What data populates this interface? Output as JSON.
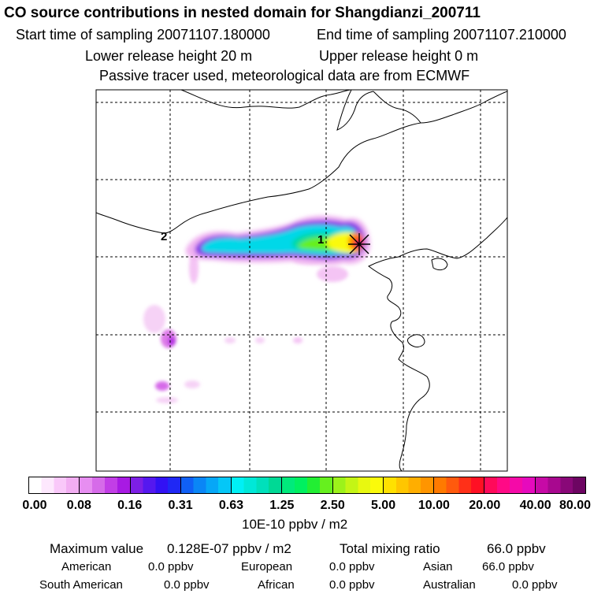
{
  "header": {
    "title": "CO  source contributions in nested domain for Shangdianzi_200711",
    "start_label": "Start time of sampling 20071107.180000",
    "end_label": "End time of sampling 20071107.210000",
    "lower_label": "Lower release height   20 m",
    "upper_label": "Upper release height    0 m",
    "note": "Passive tracer used, meteorological data are from ECMWF"
  },
  "map": {
    "station_marker": "receptor-star-icon",
    "labels": [
      "2",
      "1"
    ]
  },
  "colorbar": {
    "ticks": [
      "0.00",
      "0.08",
      "0.16",
      "0.31",
      "0.63",
      "1.25",
      "2.50",
      "5.00",
      "10.00",
      "20.00",
      "40.00",
      "80.00"
    ],
    "unit": "10E-10 ppbv / m2",
    "colors": [
      [
        "#ffffff",
        "#fde8fd",
        "#f9c8f9",
        "#f2aef2"
      ],
      [
        "#e78ef1",
        "#d66be9",
        "#c23ee6",
        "#a81ae3"
      ],
      [
        "#7d1fe6",
        "#5518ef",
        "#3211f4",
        "#1f28f5"
      ],
      [
        "#1060f6",
        "#0a86f6",
        "#06a7f7",
        "#05c7f7"
      ],
      [
        "#00f0f5",
        "#00e8d8",
        "#00e0bb",
        "#00d995"
      ],
      [
        "#00ea7c",
        "#00f060",
        "#22ee33",
        "#66f01e"
      ],
      [
        "#9cf21a",
        "#c4f515",
        "#e8f810",
        "#fbfa0a"
      ],
      [
        "#ffe100",
        "#ffc600",
        "#ffae00",
        "#ff9500"
      ],
      [
        "#ff7a00",
        "#ff5a0d",
        "#ff3018",
        "#ff1024"
      ],
      [
        "#ff0a5a",
        "#ff0a86",
        "#f50aa8",
        "#e60abd"
      ],
      [
        "#c70aa6",
        "#a8088f",
        "#890878",
        "#6d0562"
      ]
    ]
  },
  "stats": {
    "max_label": "Maximum value",
    "max_value": "0.128E-07 ppbv / m2",
    "total_label": "Total mixing ratio",
    "total_value": "66.0 ppbv"
  },
  "regions": [
    {
      "name": "American",
      "value": "0.0 ppbv"
    },
    {
      "name": "European",
      "value": "0.0 ppbv"
    },
    {
      "name": "Asian",
      "value": "66.0 ppbv"
    },
    {
      "name": "South American",
      "value": "0.0 ppbv"
    },
    {
      "name": "African",
      "value": "0.0 ppbv"
    },
    {
      "name": "Australian",
      "value": "0.0 ppbv"
    }
  ]
}
